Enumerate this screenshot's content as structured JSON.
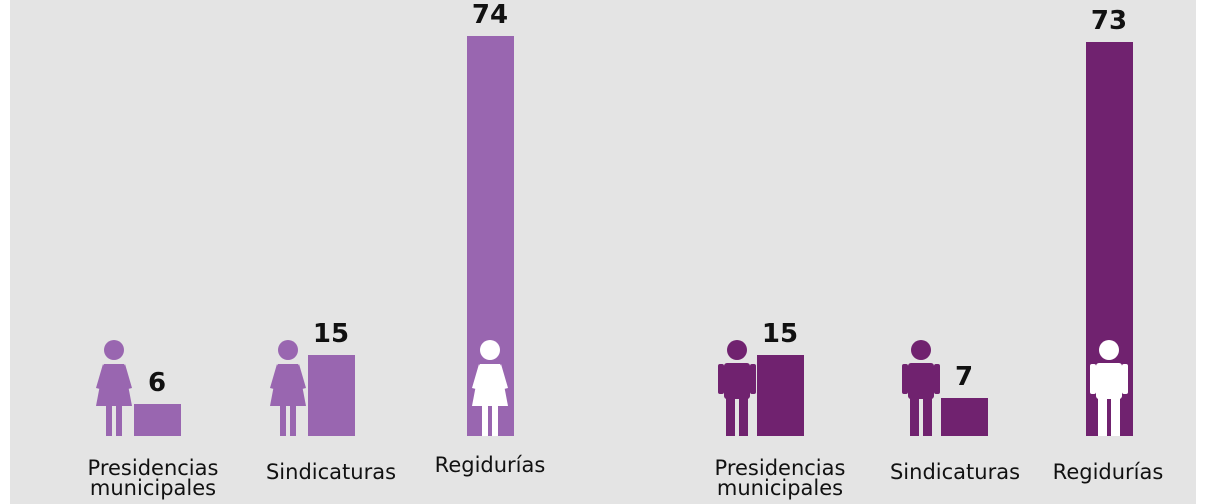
{
  "chart_data": [
    {
      "type": "bar",
      "categories": [
        "Presidencias municipales",
        "Sindicaturas",
        "Regidurías"
      ],
      "values": [
        6,
        15,
        74
      ],
      "color": "#9966b0",
      "icon": "woman"
    },
    {
      "type": "bar",
      "categories": [
        "Presidencias municipales",
        "Sindicaturas",
        "Regidurías"
      ],
      "values": [
        15,
        7,
        73
      ],
      "color": "#70226f",
      "icon": "man"
    }
  ]
}
